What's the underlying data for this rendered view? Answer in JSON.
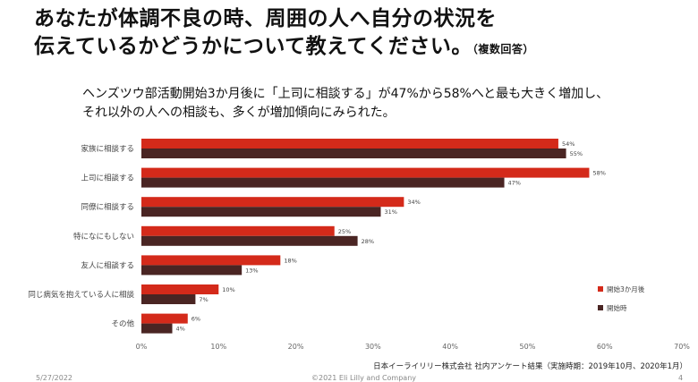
{
  "title": {
    "line1": "あなたが体調不良の時、周囲の人へ自分の状況を",
    "line2": "伝えているかどうかについて教えてください。",
    "note": "（複数回答）"
  },
  "lead": {
    "line1": "ヘンズツウ部活動開始3か月後に「上司に相談する」が47%から58%へと最も大きく増加し、",
    "line2": "それ以外の人への相談も、多くが増加傾向にみられた。"
  },
  "chart_data": {
    "type": "bar",
    "orientation": "horizontal",
    "categories": [
      "家族に相談する",
      "上司に相談する",
      "同僚に相談する",
      "特になにもしない",
      "友人に相談する",
      "同じ病気を抱えている人に相談",
      "その他"
    ],
    "series": [
      {
        "name": "開始3か月後",
        "color": "#d42a1a",
        "values": [
          54,
          58,
          34,
          25,
          18,
          10,
          6
        ]
      },
      {
        "name": "開始時",
        "color": "#4a2523",
        "values": [
          55,
          47,
          31,
          28,
          13,
          7,
          4
        ]
      }
    ],
    "xlim": [
      0,
      70
    ],
    "xticks": [
      "0%",
      "10%",
      "20%",
      "30%",
      "40%",
      "50%",
      "60%",
      "70%"
    ],
    "legend_position": "right"
  },
  "source": "日本イーライリリー株式会社 社内アンケート結果（実施時期：2019年10月、2020年1月）",
  "footer": {
    "date": "5/27/2022",
    "copyright": "©2021 Eli Lilly and Company",
    "page": "4"
  }
}
